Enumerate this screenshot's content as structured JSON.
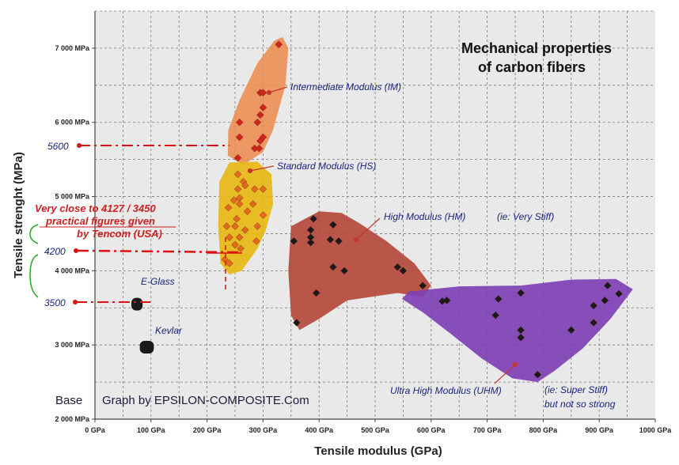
{
  "chart_data": {
    "type": "scatter",
    "title_lines": [
      "Mechanical properties",
      "of carbon fibers"
    ],
    "xlabel": "Tensile modulus (GPa)",
    "ylabel": "Tensile strenght (MPa)",
    "xlim": [
      0,
      1000
    ],
    "ylim": [
      2000,
      7500
    ],
    "x_ticks": [
      0,
      100,
      200,
      300,
      400,
      500,
      600,
      700,
      800,
      900,
      1000
    ],
    "x_tick_labels": [
      "0 GPa",
      "100 GPa",
      "200 GPa",
      "300 GPa",
      "400 GPa",
      "500 GPa",
      "600 GPa",
      "700 GPa",
      "800 GPa",
      "900 GPa",
      "1000 GPa"
    ],
    "y_ticks": [
      2000,
      3000,
      4000,
      5000,
      6000,
      7000
    ],
    "y_tick_labels": [
      "2 000 MPa",
      "3 000 MPa",
      "4 000 MPa",
      "5 000 MPa",
      "6 000 MPa",
      "7 000 MPa"
    ],
    "grid": true,
    "colors": {
      "im": "#ec8a4b",
      "hs": "#e8b70f",
      "hm": "#b5493b",
      "uhm": "#7e3fb3",
      "im_marker": "#d0251c",
      "hs_marker": "#e36a1d",
      "hm_marker": "#1a1a1a",
      "uhm_marker": "#1a1a1a",
      "annotation": "#cc1f1f",
      "label": "#1a237e"
    },
    "series": [
      {
        "name": "Intermediate Modulus (IM)",
        "label": "Intermediate Modulus (IM)",
        "points": [
          [
            328,
            7050
          ],
          [
            295,
            6400
          ],
          [
            300,
            6400
          ],
          [
            300,
            6200
          ],
          [
            258,
            6000
          ],
          [
            290,
            6000
          ],
          [
            295,
            6100
          ],
          [
            258,
            5800
          ],
          [
            300,
            5800
          ],
          [
            295,
            5750
          ],
          [
            285,
            5650
          ],
          [
            293,
            5650
          ],
          [
            255,
            5520
          ]
        ]
      },
      {
        "name": "Standard Modulus (HS)",
        "label": "Standard Modulus (HS)",
        "points": [
          [
            255,
            5300
          ],
          [
            265,
            5200
          ],
          [
            255,
            5100
          ],
          [
            268,
            5150
          ],
          [
            285,
            5100
          ],
          [
            300,
            5100
          ],
          [
            248,
            4950
          ],
          [
            258,
            4980
          ],
          [
            238,
            4850
          ],
          [
            258,
            4900
          ],
          [
            282,
            4900
          ],
          [
            272,
            4800
          ],
          [
            300,
            4750
          ],
          [
            253,
            4700
          ],
          [
            235,
            4600
          ],
          [
            250,
            4600
          ],
          [
            268,
            4550
          ],
          [
            290,
            4600
          ],
          [
            240,
            4450
          ],
          [
            258,
            4450
          ],
          [
            288,
            4400
          ],
          [
            250,
            4350
          ],
          [
            260,
            4300
          ],
          [
            232,
            4150
          ],
          [
            240,
            4100
          ]
        ]
      },
      {
        "name": "High Modulus (HM)",
        "label": "High Modulus (HM)",
        "points": [
          [
            390,
            4700
          ],
          [
            425,
            4620
          ],
          [
            385,
            4550
          ],
          [
            355,
            4400
          ],
          [
            385,
            4380
          ],
          [
            420,
            4420
          ],
          [
            385,
            4450
          ],
          [
            435,
            4400
          ],
          [
            425,
            4050
          ],
          [
            445,
            4000
          ],
          [
            540,
            4050
          ],
          [
            550,
            4000
          ],
          [
            585,
            3800
          ],
          [
            395,
            3700
          ],
          [
            360,
            3300
          ]
        ]
      },
      {
        "name": "Ultra High Modulus (UHM)",
        "label": "Ultra High Modulus (UHM)",
        "points": [
          [
            620,
            3590
          ],
          [
            628,
            3600
          ],
          [
            915,
            3800
          ],
          [
            760,
            3700
          ],
          [
            720,
            3620
          ],
          [
            935,
            3690
          ],
          [
            910,
            3600
          ],
          [
            890,
            3530
          ],
          [
            715,
            3400
          ],
          [
            890,
            3300
          ],
          [
            760,
            3200
          ],
          [
            850,
            3200
          ],
          [
            760,
            3100
          ],
          [
            790,
            2600
          ]
        ]
      },
      {
        "name": "E-Glass",
        "label": "E-Glass",
        "bar": [
          65,
          85,
          3550
        ]
      },
      {
        "name": "Kevlar",
        "label": "Kevlar",
        "bar": [
          80,
          105,
          2970
        ]
      }
    ],
    "notes": {
      "hm_note": "(ie: Very Stiff)",
      "uhm_note_1": "(ie: Super Stiff)",
      "uhm_note_2": "but not so strong",
      "annotation_lines": [
        "Very close  to 4127 / 3450",
        "practical  figures given",
        "by  Tencom (USA)"
      ],
      "ref_5600": "5600",
      "ref_4200": "4200",
      "ref_3500": "3500",
      "credit_base": "Base",
      "credit": "Graph by EPSILON-COMPOSITE.Com"
    }
  }
}
